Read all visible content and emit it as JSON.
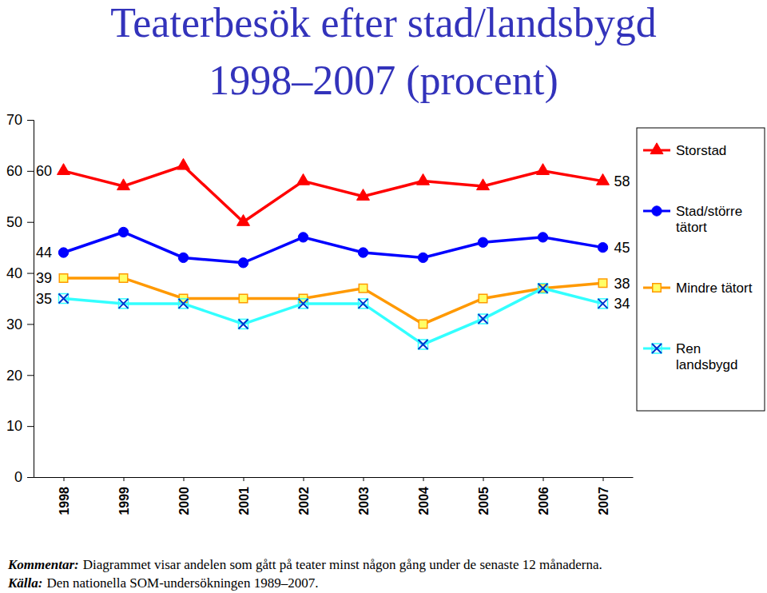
{
  "chart_data": {
    "type": "line",
    "title": "Teaterbesök efter stad/landsbygd",
    "subtitle": "1998–2007 (procent)",
    "categories": [
      "1998",
      "1999",
      "2000",
      "2001",
      "2002",
      "2003",
      "2004",
      "2005",
      "2006",
      "2007"
    ],
    "ylim": [
      0,
      70
    ],
    "yticks": [
      0,
      10,
      20,
      30,
      40,
      50,
      60,
      70
    ],
    "grid": false,
    "legend": "right",
    "data_labels": true,
    "series": [
      {
        "name": "Storstad",
        "color": "#ff0000",
        "marker": "triangle",
        "line_style": "solid",
        "values": [
          60,
          57,
          61,
          50,
          58,
          55,
          58,
          57,
          60,
          58
        ],
        "value_labels": [
          "60",
          null,
          null,
          null,
          null,
          null,
          null,
          null,
          null,
          "58"
        ]
      },
      {
        "name": "Stad/större tätort",
        "color": "#0000ff",
        "marker": "circle",
        "line_style": "solid",
        "values": [
          44,
          48,
          43,
          42,
          47,
          44,
          43,
          46,
          47,
          45
        ],
        "value_labels": [
          "44",
          null,
          null,
          null,
          null,
          null,
          null,
          null,
          null,
          "45"
        ]
      },
      {
        "name": "Mindre tätort",
        "color": "#ff9900",
        "marker": "square",
        "line_style": "solid",
        "values": [
          39,
          39,
          35,
          35,
          35,
          37,
          30,
          35,
          37,
          38
        ],
        "value_labels": [
          "39",
          null,
          null,
          null,
          null,
          null,
          null,
          null,
          null,
          "38"
        ]
      },
      {
        "name": "Ren landsbygd",
        "color": "#33ffff",
        "marker": "x",
        "line_style": "solid",
        "values": [
          35,
          34,
          34,
          30,
          34,
          34,
          26,
          31,
          37,
          34
        ],
        "value_labels": [
          "35",
          null,
          null,
          null,
          null,
          null,
          null,
          null,
          null,
          "34"
        ]
      }
    ],
    "notes": [
      {
        "lead": "Kommentar:",
        "text": "Diagrammet visar andelen som gått på teater minst någon gång under de senaste 12 månaderna."
      },
      {
        "lead": "Källa:",
        "text": "Den nationella SOM-undersökningen 1989–2007."
      }
    ]
  }
}
